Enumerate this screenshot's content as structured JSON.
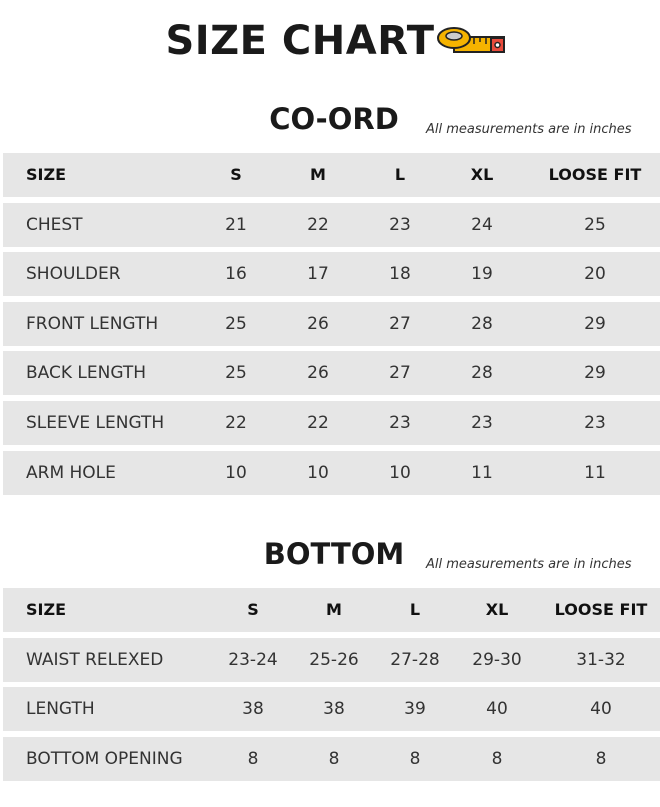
{
  "header": {
    "title": "SIZE CHART"
  },
  "tables": [
    {
      "title": "CO-ORD",
      "note": "All measurements are in inches",
      "columns": [
        "SIZE",
        "S",
        "M",
        "L",
        "XL",
        "LOOSE FIT"
      ],
      "rows": [
        [
          "CHEST",
          21,
          22,
          23,
          24,
          25
        ],
        [
          "SHOULDER",
          16,
          17,
          18,
          19,
          20
        ],
        [
          "FRONT LENGTH",
          25,
          26,
          27,
          28,
          29
        ],
        [
          "BACK LENGTH",
          25,
          26,
          27,
          28,
          29
        ],
        [
          "SLEEVE LENGTH",
          22,
          22,
          23,
          23,
          23
        ],
        [
          "ARM HOLE",
          10,
          10,
          10,
          11,
          11
        ]
      ]
    },
    {
      "title": "BOTTOM",
      "note": "All measurements are in inches",
      "columns": [
        "SIZE",
        "S",
        "M",
        "L",
        "XL",
        "LOOSE FIT"
      ],
      "rows": [
        [
          "WAIST RELEXED",
          "23-24",
          "25-26",
          "27-28",
          "29-30",
          "31-32"
        ],
        [
          "LENGTH",
          38,
          38,
          39,
          40,
          40
        ],
        [
          "BOTTOM OPENING",
          8,
          8,
          8,
          8,
          8
        ]
      ]
    }
  ]
}
